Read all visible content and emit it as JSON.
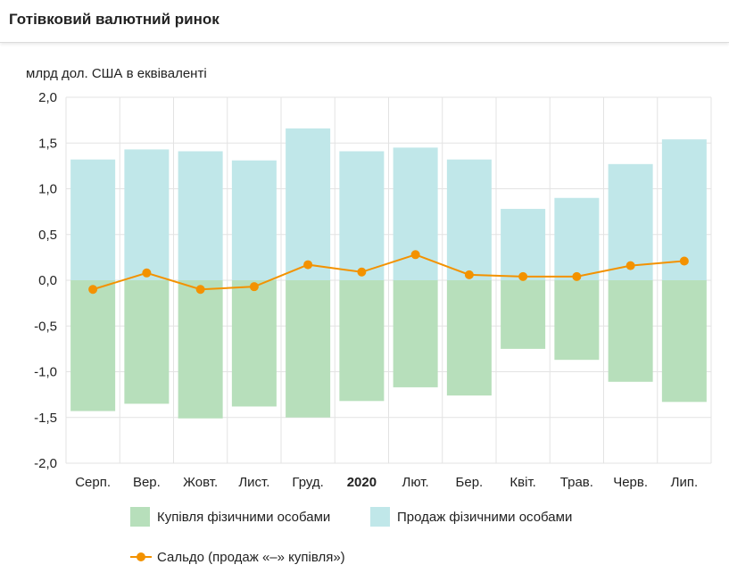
{
  "header": {
    "title": "Готівковий валютний ринок"
  },
  "chart_data": {
    "type": "bar",
    "unit_label": "млрд дол. США в еквіваленті",
    "categories": [
      "Серп.",
      "Вер.",
      "Жовт.",
      "Лист.",
      "Груд.",
      "2020",
      "Лют.",
      "Бер.",
      "Квіт.",
      "Трав.",
      "Черв.",
      "Лип."
    ],
    "bold_categories": [
      "2020"
    ],
    "ylim": [
      -2.0,
      2.0
    ],
    "yticks": [
      "2,0",
      "1,5",
      "1,0",
      "0,5",
      "0,0",
      "-0,5",
      "-1,0",
      "-1,5",
      "-2,0"
    ],
    "grid": true,
    "stacked": true,
    "series": [
      {
        "name": "Купівля фізичними особами",
        "type": "bar",
        "color": "#b7dfbb",
        "values": [
          -1.43,
          -1.35,
          -1.51,
          -1.38,
          -1.5,
          -1.32,
          -1.17,
          -1.26,
          -0.75,
          -0.87,
          -1.11,
          -1.33
        ]
      },
      {
        "name": "Продаж фізичними особами",
        "type": "bar",
        "color": "#c0e7e9",
        "values": [
          1.32,
          1.43,
          1.41,
          1.31,
          1.66,
          1.41,
          1.45,
          1.32,
          0.78,
          0.9,
          1.27,
          1.54
        ]
      },
      {
        "name": "Сальдо (продаж «–» купівля»)",
        "type": "line",
        "color": "#f39200",
        "values": [
          -0.1,
          0.08,
          -0.1,
          -0.07,
          0.17,
          0.09,
          0.28,
          0.06,
          0.04,
          0.04,
          0.16,
          0.21
        ]
      }
    ],
    "legend_position": "bottom"
  }
}
